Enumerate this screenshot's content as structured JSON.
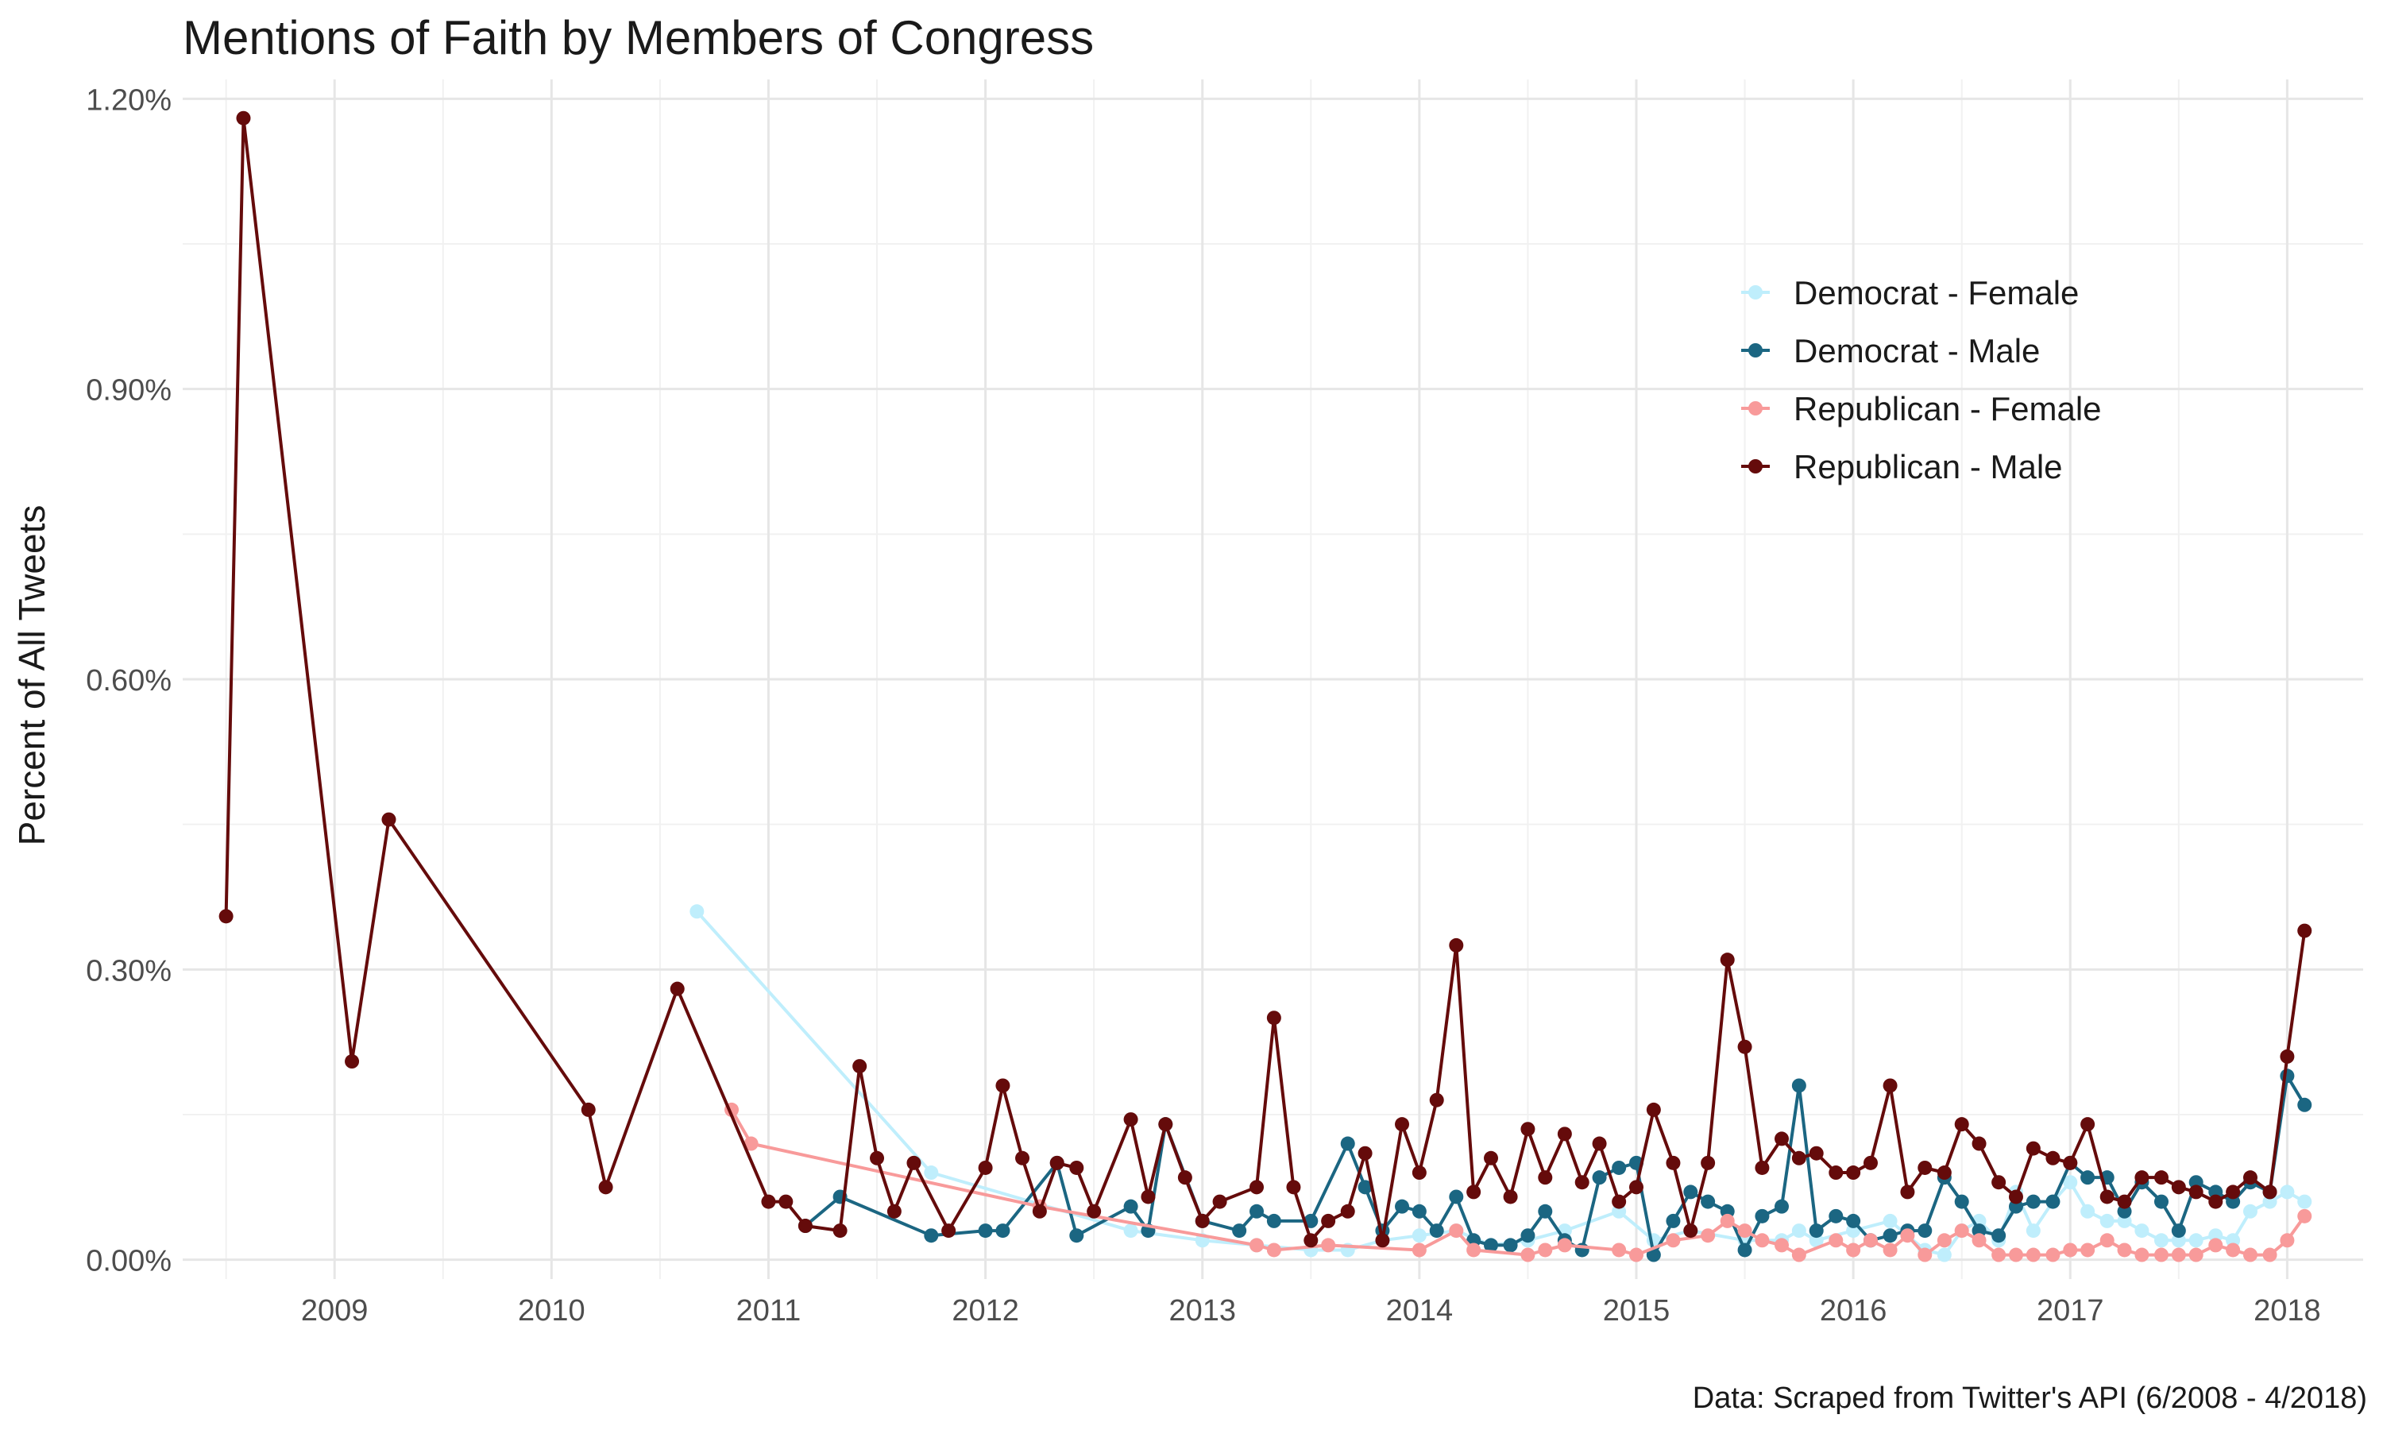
{
  "chart_data": {
    "type": "line",
    "title": "Mentions of Faith by Members of Congress",
    "xlabel": "",
    "ylabel": "Percent of All Tweets",
    "caption": "Data: Scraped from Twitter's API (6/2008 - 4/2018)",
    "xlim": [
      2008.3,
      2018.35
    ],
    "ylim": [
      -0.0002,
      0.0122
    ],
    "x_ticks": [
      2009,
      2010,
      2011,
      2012,
      2013,
      2014,
      2015,
      2016,
      2017,
      2018
    ],
    "x_tick_labels": [
      "2009",
      "2010",
      "2011",
      "2012",
      "2013",
      "2014",
      "2015",
      "2016",
      "2017",
      "2018"
    ],
    "y_ticks": [
      0,
      0.003,
      0.006,
      0.009,
      0.012
    ],
    "y_tick_labels": [
      "0.00%",
      "0.30%",
      "0.60%",
      "0.90%",
      "1.20%"
    ],
    "grid": true,
    "legend_position": "top-right",
    "series": [
      {
        "name": "Democrat - Female",
        "color": "#bfeefc",
        "x": [
          2010.67,
          2011.75,
          2012.67,
          2013.0,
          2013.25,
          2013.5,
          2013.67,
          2013.83,
          2014.0,
          2014.17,
          2014.33,
          2014.5,
          2014.67,
          2014.92,
          2015.08,
          2015.25,
          2015.5,
          2015.67,
          2015.75,
          2015.83,
          2016.0,
          2016.17,
          2016.33,
          2016.42,
          2016.5,
          2016.58,
          2016.67,
          2016.75,
          2016.83,
          2016.92,
          2017.0,
          2017.08,
          2017.17,
          2017.25,
          2017.33,
          2017.42,
          2017.5,
          2017.58,
          2017.67,
          2017.75,
          2017.83,
          2017.92,
          2018.0,
          2018.08
        ],
        "y": [
          0.0036,
          0.0009,
          0.0003,
          0.0002,
          0.00015,
          0.0001,
          0.0001,
          0.0002,
          0.00025,
          0.0003,
          0.00015,
          0.0002,
          0.0003,
          0.0005,
          0.0002,
          0.0003,
          0.0002,
          0.0002,
          0.0003,
          0.0002,
          0.0003,
          0.0004,
          0.0001,
          5e-05,
          0.0003,
          0.0004,
          0.0002,
          0.0007,
          0.0003,
          0.0006,
          0.0008,
          0.0005,
          0.0004,
          0.0004,
          0.0003,
          0.0002,
          0.0002,
          0.0002,
          0.00025,
          0.0002,
          0.0005,
          0.0006,
          0.0007,
          0.0006
        ]
      },
      {
        "name": "Democrat - Male",
        "color": "#1b6682",
        "x": [
          2011.17,
          2011.33,
          2011.75,
          2012.0,
          2012.08,
          2012.33,
          2012.42,
          2012.67,
          2012.75,
          2012.83,
          2013.0,
          2013.17,
          2013.25,
          2013.33,
          2013.5,
          2013.67,
          2013.75,
          2013.83,
          2013.92,
          2014.0,
          2014.08,
          2014.17,
          2014.25,
          2014.33,
          2014.42,
          2014.5,
          2014.58,
          2014.67,
          2014.75,
          2014.83,
          2014.92,
          2015.0,
          2015.08,
          2015.17,
          2015.25,
          2015.33,
          2015.42,
          2015.5,
          2015.58,
          2015.67,
          2015.75,
          2015.83,
          2015.92,
          2016.0,
          2016.08,
          2016.17,
          2016.25,
          2016.33,
          2016.42,
          2016.5,
          2016.58,
          2016.67,
          2016.75,
          2016.83,
          2016.92,
          2017.0,
          2017.08,
          2017.17,
          2017.25,
          2017.33,
          2017.42,
          2017.5,
          2017.58,
          2017.67,
          2017.75,
          2017.83,
          2017.92,
          2018.0,
          2018.08
        ],
        "y": [
          0.00035,
          0.00065,
          0.00025,
          0.0003,
          0.0003,
          0.001,
          0.00025,
          0.00055,
          0.0003,
          0.0014,
          0.0004,
          0.0003,
          0.0005,
          0.0004,
          0.0004,
          0.0012,
          0.00075,
          0.0003,
          0.00055,
          0.0005,
          0.0003,
          0.00065,
          0.0002,
          0.00015,
          0.00015,
          0.00025,
          0.0005,
          0.0002,
          0.0001,
          0.00085,
          0.00095,
          0.001,
          5e-05,
          0.0004,
          0.0007,
          0.0006,
          0.0005,
          0.0001,
          0.00045,
          0.00055,
          0.0018,
          0.0003,
          0.00045,
          0.0004,
          0.0002,
          0.00025,
          0.0003,
          0.0003,
          0.00085,
          0.0006,
          0.0003,
          0.00025,
          0.00055,
          0.0006,
          0.0006,
          0.001,
          0.00085,
          0.00085,
          0.0005,
          0.0008,
          0.0006,
          0.0003,
          0.0008,
          0.0007,
          0.0006,
          0.0008,
          0.0007,
          0.0019,
          0.0016
        ]
      },
      {
        "name": "Republican - Female",
        "color": "#f89a9a",
        "x": [
          2010.83,
          2010.92,
          2012.25,
          2013.25,
          2013.33,
          2013.58,
          2014.0,
          2014.17,
          2014.25,
          2014.5,
          2014.58,
          2014.67,
          2014.92,
          2015.0,
          2015.17,
          2015.33,
          2015.42,
          2015.5,
          2015.58,
          2015.67,
          2015.75,
          2015.92,
          2016.0,
          2016.08,
          2016.17,
          2016.25,
          2016.33,
          2016.42,
          2016.5,
          2016.58,
          2016.67,
          2016.75,
          2016.83,
          2016.92,
          2017.0,
          2017.08,
          2017.17,
          2017.25,
          2017.33,
          2017.42,
          2017.5,
          2017.58,
          2017.67,
          2017.75,
          2017.83,
          2017.92,
          2018.0,
          2018.08
        ],
        "y": [
          0.00155,
          0.0012,
          0.00055,
          0.00015,
          0.0001,
          0.00015,
          0.0001,
          0.0003,
          0.0001,
          5e-05,
          0.0001,
          0.00015,
          0.0001,
          5e-05,
          0.0002,
          0.00025,
          0.0004,
          0.0003,
          0.0002,
          0.00015,
          5e-05,
          0.0002,
          0.0001,
          0.0002,
          0.0001,
          0.00025,
          5e-05,
          0.0002,
          0.0003,
          0.0002,
          5e-05,
          5e-05,
          5e-05,
          5e-05,
          0.0001,
          0.0001,
          0.0002,
          0.0001,
          5e-05,
          5e-05,
          5e-05,
          5e-05,
          0.00015,
          0.0001,
          5e-05,
          5e-05,
          0.0002,
          0.00045
        ]
      },
      {
        "name": "Republican - Male",
        "color": "#650b0b",
        "x": [
          2008.5,
          2008.58,
          2009.08,
          2009.25,
          2010.17,
          2010.25,
          2010.58,
          2011.0,
          2011.08,
          2011.17,
          2011.33,
          2011.42,
          2011.5,
          2011.58,
          2011.67,
          2011.83,
          2012.0,
          2012.08,
          2012.17,
          2012.25,
          2012.33,
          2012.42,
          2012.5,
          2012.67,
          2012.75,
          2012.83,
          2012.92,
          2013.0,
          2013.08,
          2013.25,
          2013.33,
          2013.42,
          2013.5,
          2013.58,
          2013.67,
          2013.75,
          2013.83,
          2013.92,
          2014.0,
          2014.08,
          2014.17,
          2014.25,
          2014.33,
          2014.42,
          2014.5,
          2014.58,
          2014.67,
          2014.75,
          2014.83,
          2014.92,
          2015.0,
          2015.08,
          2015.17,
          2015.25,
          2015.33,
          2015.42,
          2015.5,
          2015.58,
          2015.67,
          2015.75,
          2015.83,
          2015.92,
          2016.0,
          2016.08,
          2016.17,
          2016.25,
          2016.33,
          2016.42,
          2016.5,
          2016.58,
          2016.67,
          2016.75,
          2016.83,
          2016.92,
          2017.0,
          2017.08,
          2017.17,
          2017.25,
          2017.33,
          2017.42,
          2017.5,
          2017.58,
          2017.67,
          2017.75,
          2017.83,
          2017.92,
          2018.0,
          2018.08
        ],
        "y": [
          0.00355,
          0.0118,
          0.00205,
          0.00455,
          0.00155,
          0.00075,
          0.0028,
          0.0006,
          0.0006,
          0.00035,
          0.0003,
          0.002,
          0.00105,
          0.0005,
          0.001,
          0.0003,
          0.00095,
          0.0018,
          0.00105,
          0.0005,
          0.001,
          0.00095,
          0.0005,
          0.00145,
          0.00065,
          0.0014,
          0.00085,
          0.0004,
          0.0006,
          0.00075,
          0.0025,
          0.00075,
          0.0002,
          0.0004,
          0.0005,
          0.0011,
          0.0002,
          0.0014,
          0.0009,
          0.00165,
          0.00325,
          0.0007,
          0.00105,
          0.00065,
          0.00135,
          0.00085,
          0.0013,
          0.0008,
          0.0012,
          0.0006,
          0.00075,
          0.00155,
          0.001,
          0.0003,
          0.001,
          0.0031,
          0.0022,
          0.00095,
          0.00125,
          0.00105,
          0.0011,
          0.0009,
          0.0009,
          0.001,
          0.0018,
          0.0007,
          0.00095,
          0.0009,
          0.0014,
          0.0012,
          0.0008,
          0.00065,
          0.00115,
          0.00105,
          0.001,
          0.0014,
          0.00065,
          0.0006,
          0.00085,
          0.00085,
          0.00075,
          0.0007,
          0.0006,
          0.0007,
          0.00085,
          0.0007,
          0.0021,
          0.0034
        ]
      }
    ]
  }
}
